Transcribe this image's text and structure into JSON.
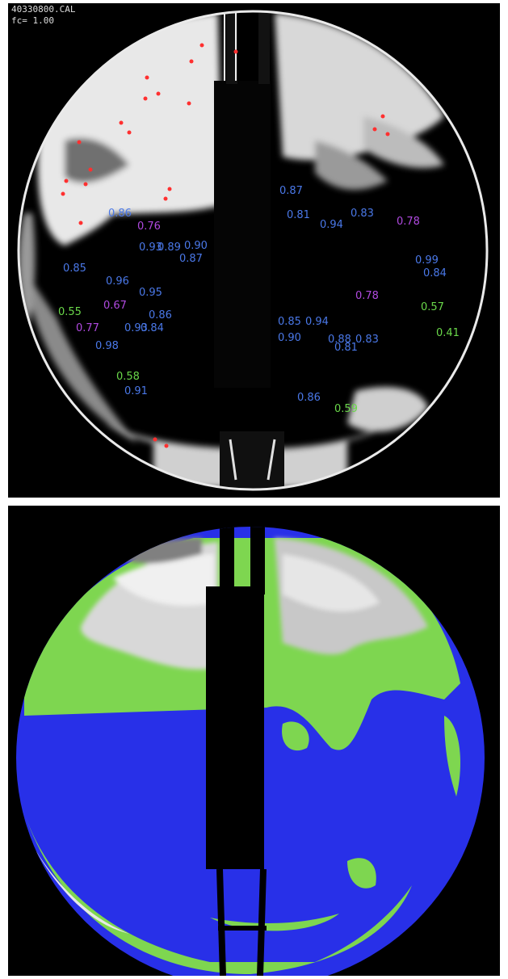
{
  "top_panel": {
    "header_file": "40330800.CAL",
    "header_factor": "fc= 1.00",
    "colors": {
      "blue": "#4a78e8",
      "purple": "#b04ae0",
      "green": "#6ad84a",
      "red_marker": "#ff3030"
    },
    "labels": [
      {
        "text": "0.87",
        "color": "blue"
      },
      {
        "text": "0.86",
        "color": "blue"
      },
      {
        "text": "0.81",
        "color": "blue"
      },
      {
        "text": "0.94",
        "color": "blue"
      },
      {
        "text": "0.83",
        "color": "blue"
      },
      {
        "text": "0.76",
        "color": "purple"
      },
      {
        "text": "0.78",
        "color": "purple"
      },
      {
        "text": "0.93",
        "color": "blue"
      },
      {
        "text": "0.89",
        "color": "blue"
      },
      {
        "text": "0.90",
        "color": "blue"
      },
      {
        "text": "0.87",
        "color": "blue"
      },
      {
        "text": "0.85",
        "color": "blue"
      },
      {
        "text": "0.99",
        "color": "blue"
      },
      {
        "text": "0.84",
        "color": "blue"
      },
      {
        "text": "0.96",
        "color": "blue"
      },
      {
        "text": "0.95",
        "color": "blue"
      },
      {
        "text": "0.67",
        "color": "purple"
      },
      {
        "text": "0.78",
        "color": "purple"
      },
      {
        "text": "0.55",
        "color": "green"
      },
      {
        "text": "0.86",
        "color": "blue"
      },
      {
        "text": "0.57",
        "color": "green"
      },
      {
        "text": "0.77",
        "color": "purple"
      },
      {
        "text": "0.93",
        "color": "blue"
      },
      {
        "text": "0.84",
        "color": "blue"
      },
      {
        "text": "0.85",
        "color": "blue"
      },
      {
        "text": "0.94",
        "color": "blue"
      },
      {
        "text": "0.41",
        "color": "green"
      },
      {
        "text": "0.98",
        "color": "blue"
      },
      {
        "text": "0.90",
        "color": "blue"
      },
      {
        "text": "0.88",
        "color": "blue"
      },
      {
        "text": "0.81",
        "color": "blue"
      },
      {
        "text": "0.83",
        "color": "blue"
      },
      {
        "text": "0.58",
        "color": "green"
      },
      {
        "text": "0.91",
        "color": "blue"
      },
      {
        "text": "0.86",
        "color": "blue"
      },
      {
        "text": "0.59",
        "color": "green"
      }
    ]
  },
  "bottom_panel": {
    "colors": {
      "sky": "#2830e8",
      "cloud_thin": "#7ed650",
      "cloud_thick": "#cfcfcf"
    }
  }
}
